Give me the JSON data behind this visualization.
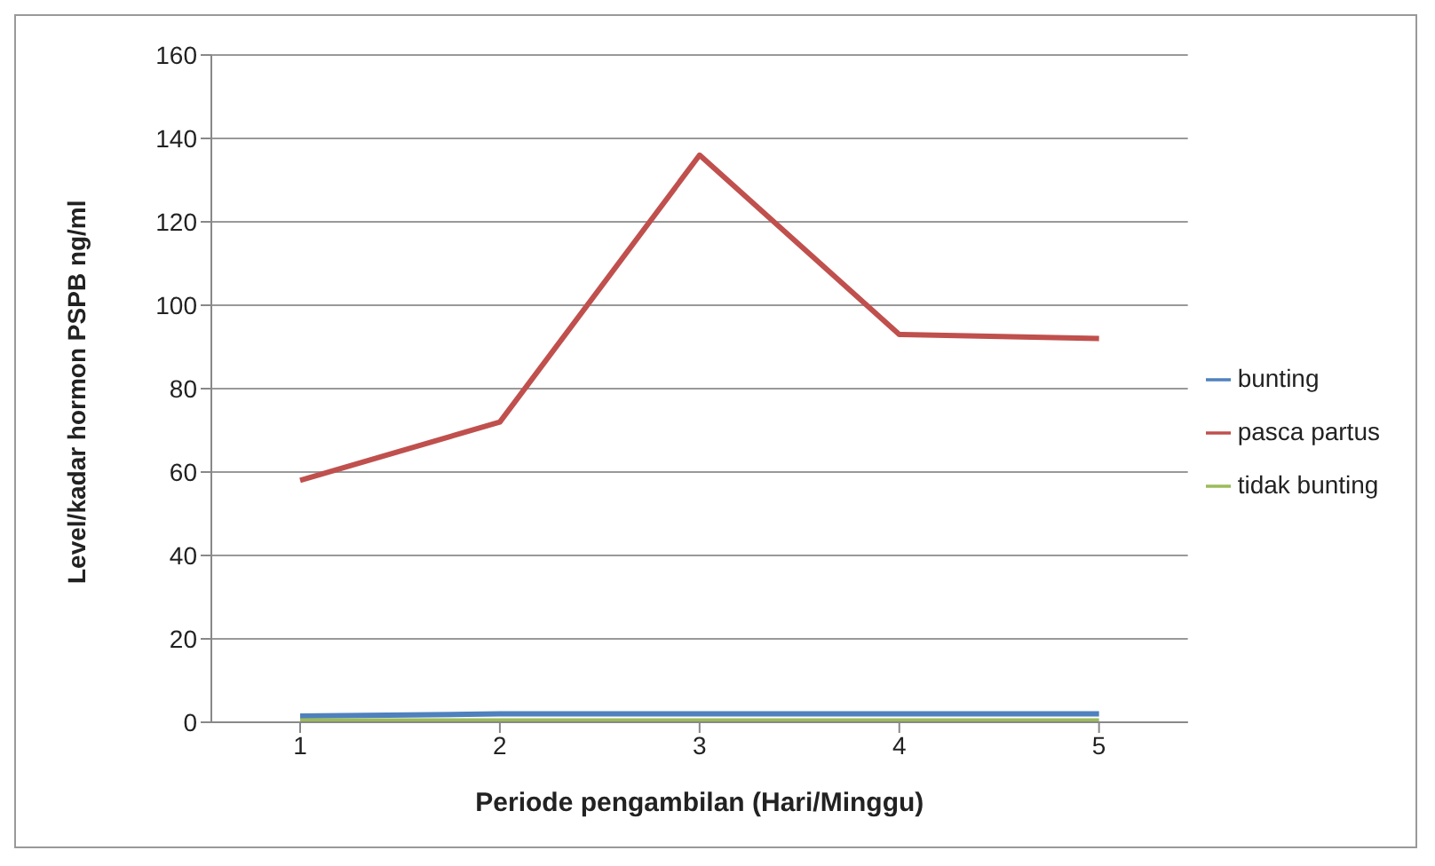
{
  "chart_data": {
    "type": "line",
    "xlabel": "Periode pengambilan (Hari/Minggu)",
    "ylabel": "Level/kadar hormon PSPB ng/ml",
    "categories": [
      "1",
      "2",
      "3",
      "4",
      "5"
    ],
    "series": [
      {
        "name": "bunting",
        "color": "#4f81bd",
        "values": [
          1.5,
          2,
          2,
          2,
          2
        ]
      },
      {
        "name": "pasca partus",
        "color": "#c0504d",
        "values": [
          58,
          72,
          136,
          93,
          92
        ]
      },
      {
        "name": "tidak bunting",
        "color": "#9bbb59",
        "values": [
          0.3,
          0.3,
          0.3,
          0.3,
          0.3
        ]
      }
    ],
    "ylim": [
      0,
      160
    ],
    "yticks": [
      0,
      20,
      40,
      60,
      80,
      100,
      120,
      140,
      160
    ],
    "grid": "y",
    "legend": "right",
    "marker": "none",
    "line_style": "solid"
  }
}
